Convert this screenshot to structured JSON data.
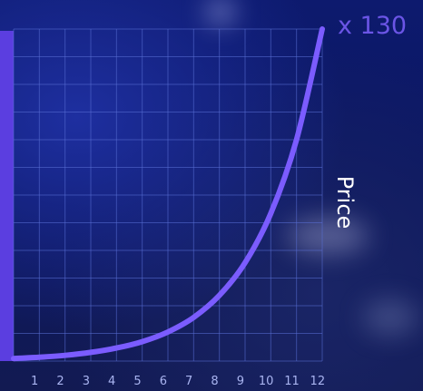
{
  "chart_data": {
    "type": "line",
    "x": [
      0,
      1,
      2,
      3,
      4,
      5,
      6,
      7,
      8,
      9,
      10,
      11,
      12
    ],
    "series": [
      {
        "values": [
          1,
          1.5,
          2.25,
          3.4,
          5.1,
          7.6,
          11.4,
          17.1,
          25.7,
          38.5,
          57.8,
          86.7,
          130
        ]
      }
    ],
    "xticks": [
      "1",
      "2",
      "3",
      "4",
      "5",
      "6",
      "7",
      "8",
      "9",
      "10",
      "11",
      "12"
    ],
    "ylabel": "Price",
    "multiplier_label": "x 130",
    "ylim": [
      0,
      130
    ],
    "xlim": [
      0,
      12
    ],
    "grid": true,
    "colors": {
      "line": "#7b5cff",
      "grid": "#5a6fd6",
      "sidebar": "#5b3ee0",
      "label": "#ffffff",
      "ticks": "#a9b4f0",
      "multiplier": "#6b55e6"
    }
  }
}
